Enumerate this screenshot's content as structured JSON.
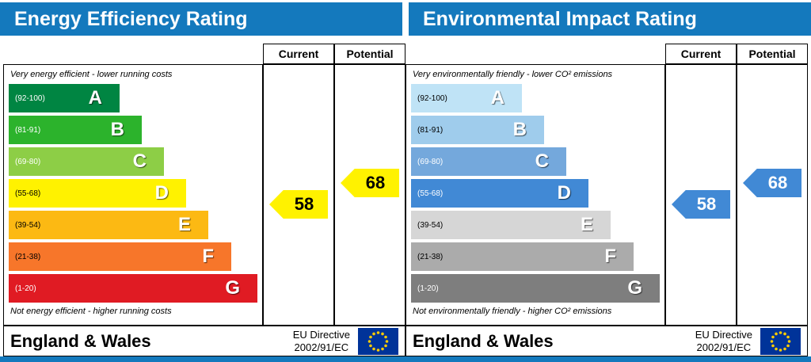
{
  "panels": [
    {
      "title": "Energy Efficiency Rating",
      "columns": {
        "current": "Current",
        "potential": "Potential"
      },
      "top_caption": "Very energy efficient - lower running costs",
      "bottom_caption": "Not energy efficient - higher running costs",
      "bands": [
        {
          "letter": "A",
          "range": "(92-100)",
          "color": "#008542",
          "text_color": "#ffffff"
        },
        {
          "letter": "B",
          "range": "(81-91)",
          "color": "#2cb32c",
          "text_color": "#ffffff"
        },
        {
          "letter": "C",
          "range": "(69-80)",
          "color": "#8dce46",
          "text_color": "#ffffff"
        },
        {
          "letter": "D",
          "range": "(55-68)",
          "color": "#fff200",
          "text_color": "#000000"
        },
        {
          "letter": "E",
          "range": "(39-54)",
          "color": "#fcb913",
          "text_color": "#000000"
        },
        {
          "letter": "F",
          "range": "(21-38)",
          "color": "#f7762a",
          "text_color": "#000000"
        },
        {
          "letter": "G",
          "range": "(1-20)",
          "color": "#e01b23",
          "text_color": "#ffffff"
        }
      ],
      "arrows": {
        "current": {
          "value": "58",
          "color": "#fff200",
          "text_color": "#000000"
        },
        "potential": {
          "value": "68",
          "color": "#fff200",
          "text_color": "#000000"
        }
      },
      "footer": {
        "region": "England & Wales",
        "directive_line1": "EU Directive",
        "directive_line2": "2002/91/EC"
      }
    },
    {
      "title": "Environmental Impact Rating",
      "columns": {
        "current": "Current",
        "potential": "Potential"
      },
      "top_caption": "Very environmentally friendly - lower CO² emissions",
      "bottom_caption": "Not environmentally friendly - higher CO² emissions",
      "bands": [
        {
          "letter": "A",
          "range": "(92-100)",
          "color": "#bfe3f6",
          "text_color": "#000000"
        },
        {
          "letter": "B",
          "range": "(81-91)",
          "color": "#9fccec",
          "text_color": "#000000"
        },
        {
          "letter": "C",
          "range": "(69-80)",
          "color": "#74a8dc",
          "text_color": "#ffffff"
        },
        {
          "letter": "D",
          "range": "(55-68)",
          "color": "#4189d5",
          "text_color": "#ffffff"
        },
        {
          "letter": "E",
          "range": "(39-54)",
          "color": "#d6d6d6",
          "text_color": "#000000"
        },
        {
          "letter": "F",
          "range": "(21-38)",
          "color": "#ababab",
          "text_color": "#000000"
        },
        {
          "letter": "G",
          "range": "(1-20)",
          "color": "#7e7e7e",
          "text_color": "#ffffff"
        }
      ],
      "arrows": {
        "current": {
          "value": "58",
          "color": "#4189d5",
          "text_color": "#ffffff"
        },
        "potential": {
          "value": "68",
          "color": "#4189d5",
          "text_color": "#ffffff"
        }
      },
      "footer": {
        "region": "England & Wales",
        "directive_line1": "EU Directive",
        "directive_line2": "2002/91/EC"
      }
    }
  ],
  "colors": {
    "accent_blue": "#1479bd",
    "eu_flag_blue": "#003399",
    "eu_star_gold": "#ffcc00"
  },
  "chart_data": [
    {
      "type": "bar",
      "title": "Energy Efficiency Rating",
      "categories": [
        "A (92-100)",
        "B (81-91)",
        "C (69-80)",
        "D (55-68)",
        "E (39-54)",
        "F (21-38)",
        "G (1-20)"
      ],
      "current": 58,
      "potential": 68,
      "scale": [
        1,
        100
      ],
      "current_band": "D",
      "potential_band": "D",
      "band_colors": [
        "#008542",
        "#2cb32c",
        "#8dce46",
        "#fff200",
        "#fcb913",
        "#f7762a",
        "#e01b23"
      ],
      "legend_position": "none",
      "notes": "UK EPC style horizontal band chart; bars lengthen from A to G"
    },
    {
      "type": "bar",
      "title": "Environmental Impact Rating",
      "categories": [
        "A (92-100)",
        "B (81-91)",
        "C (69-80)",
        "D (55-68)",
        "E (39-54)",
        "F (21-38)",
        "G (1-20)"
      ],
      "current": 58,
      "potential": 68,
      "scale": [
        1,
        100
      ],
      "current_band": "D",
      "potential_band": "D",
      "band_colors": [
        "#bfe3f6",
        "#9fccec",
        "#74a8dc",
        "#4189d5",
        "#d6d6d6",
        "#ababab",
        "#7e7e7e"
      ],
      "legend_position": "none",
      "notes": "UK EPC style horizontal band chart; bars lengthen from A to G"
    }
  ]
}
